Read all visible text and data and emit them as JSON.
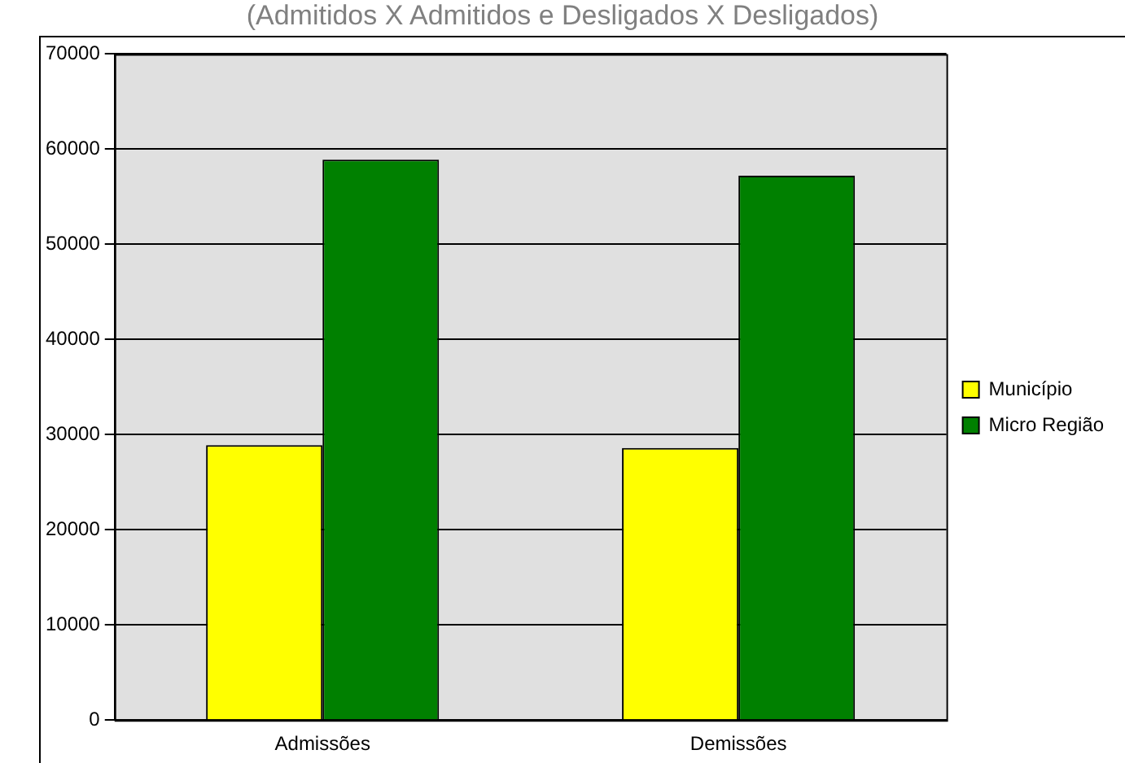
{
  "chart_data": {
    "type": "bar",
    "title": "(Admitidos X Admitidos e Desligados X Desligados)",
    "categories": [
      "Admissões",
      "Demissões"
    ],
    "series": [
      {
        "name": "Município",
        "color": "#ffff00",
        "values": [
          28900,
          28600
        ]
      },
      {
        "name": "Micro Região",
        "color": "#008000",
        "values": [
          58900,
          57200
        ]
      }
    ],
    "ylim": [
      0,
      70000
    ],
    "yticks": [
      0,
      10000,
      20000,
      30000,
      40000,
      50000,
      60000,
      70000
    ],
    "grid": "y",
    "legend": "right"
  }
}
